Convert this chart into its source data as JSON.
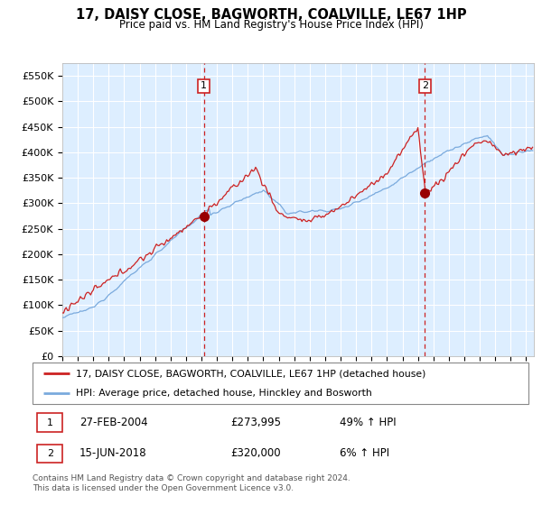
{
  "title": "17, DAISY CLOSE, BAGWORTH, COALVILLE, LE67 1HP",
  "subtitle": "Price paid vs. HM Land Registry's House Price Index (HPI)",
  "ylim": [
    0,
    575000
  ],
  "yticks": [
    0,
    50000,
    100000,
    150000,
    200000,
    250000,
    300000,
    350000,
    400000,
    450000,
    500000,
    550000
  ],
  "ytick_labels": [
    "£0",
    "£50K",
    "£100K",
    "£150K",
    "£200K",
    "£250K",
    "£300K",
    "£350K",
    "£400K",
    "£450K",
    "£500K",
    "£550K"
  ],
  "marker1_year": 2004.15,
  "marker1_value": 273995,
  "marker2_year": 2018.45,
  "marker2_value": 320000,
  "hpi_line_color": "#7aaadd",
  "price_line_color": "#cc2222",
  "marker_dot_color": "#990000",
  "plot_bg_color": "#ddeeff",
  "grid_color": "#ffffff",
  "legend_line1": "17, DAISY CLOSE, BAGWORTH, COALVILLE, LE67 1HP (detached house)",
  "legend_line2": "HPI: Average price, detached house, Hinckley and Bosworth",
  "marker1_text": "27-FEB-2004",
  "marker1_price": "£273,995",
  "marker1_hpi": "49% ↑ HPI",
  "marker2_text": "15-JUN-2018",
  "marker2_price": "£320,000",
  "marker2_hpi": "6% ↑ HPI",
  "footer_text": "Contains HM Land Registry data © Crown copyright and database right 2024.\nThis data is licensed under the Open Government Licence v3.0."
}
